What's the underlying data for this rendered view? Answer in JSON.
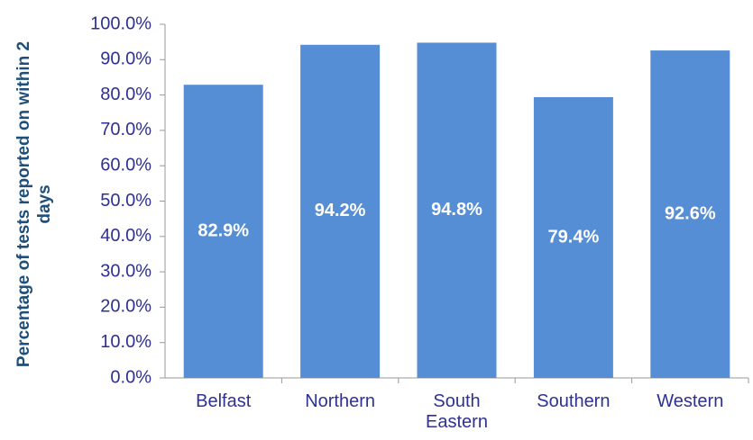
{
  "chart_data": {
    "type": "bar",
    "y_label": "Percentage of tests reported on within 2 days",
    "categories": [
      "Belfast",
      "Northern",
      "South Eastern",
      "Southern",
      "Western"
    ],
    "values": [
      82.9,
      94.2,
      94.8,
      79.4,
      92.6
    ],
    "value_labels": [
      "82.9%",
      "94.2%",
      "94.8%",
      "79.4%",
      "92.6%"
    ],
    "color": "#558ed5",
    "ylim": [
      0,
      100
    ],
    "yticks": [
      {
        "value": 0,
        "label": "0.0%"
      },
      {
        "value": 10,
        "label": "10.0%"
      },
      {
        "value": 20,
        "label": "20.0%"
      },
      {
        "value": 30,
        "label": "30.0%"
      },
      {
        "value": 40,
        "label": "40.0%"
      },
      {
        "value": 50,
        "label": "50.0%"
      },
      {
        "value": 60,
        "label": "60.0%"
      },
      {
        "value": 70,
        "label": "70.0%"
      },
      {
        "value": 80,
        "label": "80.0%"
      },
      {
        "value": 90,
        "label": "90.0%"
      },
      {
        "value": 100,
        "label": "100.0%"
      }
    ],
    "grid": false
  }
}
